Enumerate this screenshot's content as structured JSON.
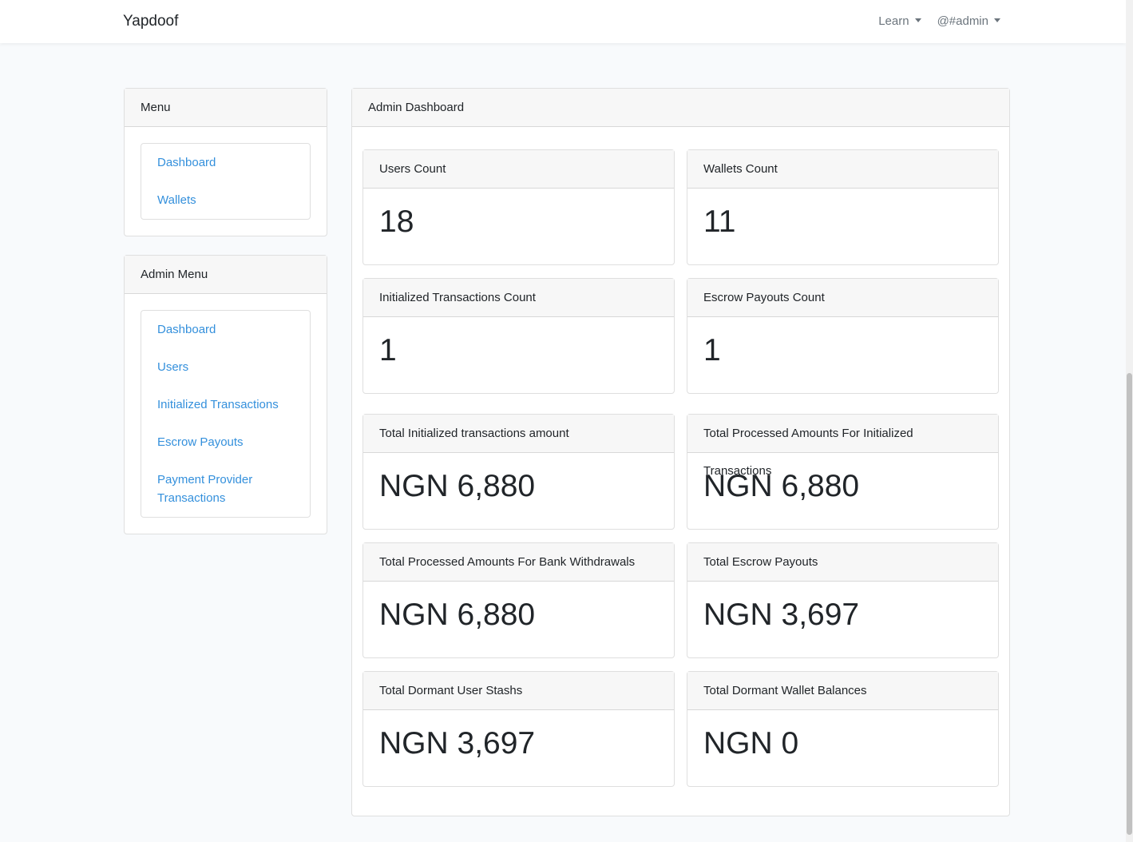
{
  "navbar": {
    "brand": "Yapdoof",
    "items": [
      "Learn",
      "@#admin"
    ]
  },
  "sidebar": [
    {
      "title": "Menu",
      "links": [
        "Dashboard",
        "Wallets"
      ]
    },
    {
      "title": "Admin Menu",
      "links": [
        "Dashboard",
        "Users",
        "Initialized Transactions",
        "Escrow Payouts",
        "Payment Provider Transactions"
      ]
    }
  ],
  "main": {
    "title": "Admin Dashboard",
    "stats": [
      {
        "label": "Users Count",
        "value": "18"
      },
      {
        "label": "Wallets Count",
        "value": "11"
      },
      {
        "label": "Initialized Transactions Count",
        "value": "1"
      },
      {
        "label": "Escrow Payouts Count",
        "value": "1"
      },
      {
        "label": "Total Initialized transactions amount",
        "value": "NGN 6,880"
      },
      {
        "label": "Total Processed Amounts For Initialized Transactions",
        "value": "NGN 6,880"
      },
      {
        "label": "Total Processed Amounts For Bank Withdrawals",
        "value": "NGN 6,880"
      },
      {
        "label": "Total Escrow Payouts",
        "value": "NGN 3,697"
      },
      {
        "label": "Total Dormant User Stashs",
        "value": "NGN 3,697"
      },
      {
        "label": "Total Dormant Wallet Balances",
        "value": "NGN 0"
      }
    ]
  }
}
